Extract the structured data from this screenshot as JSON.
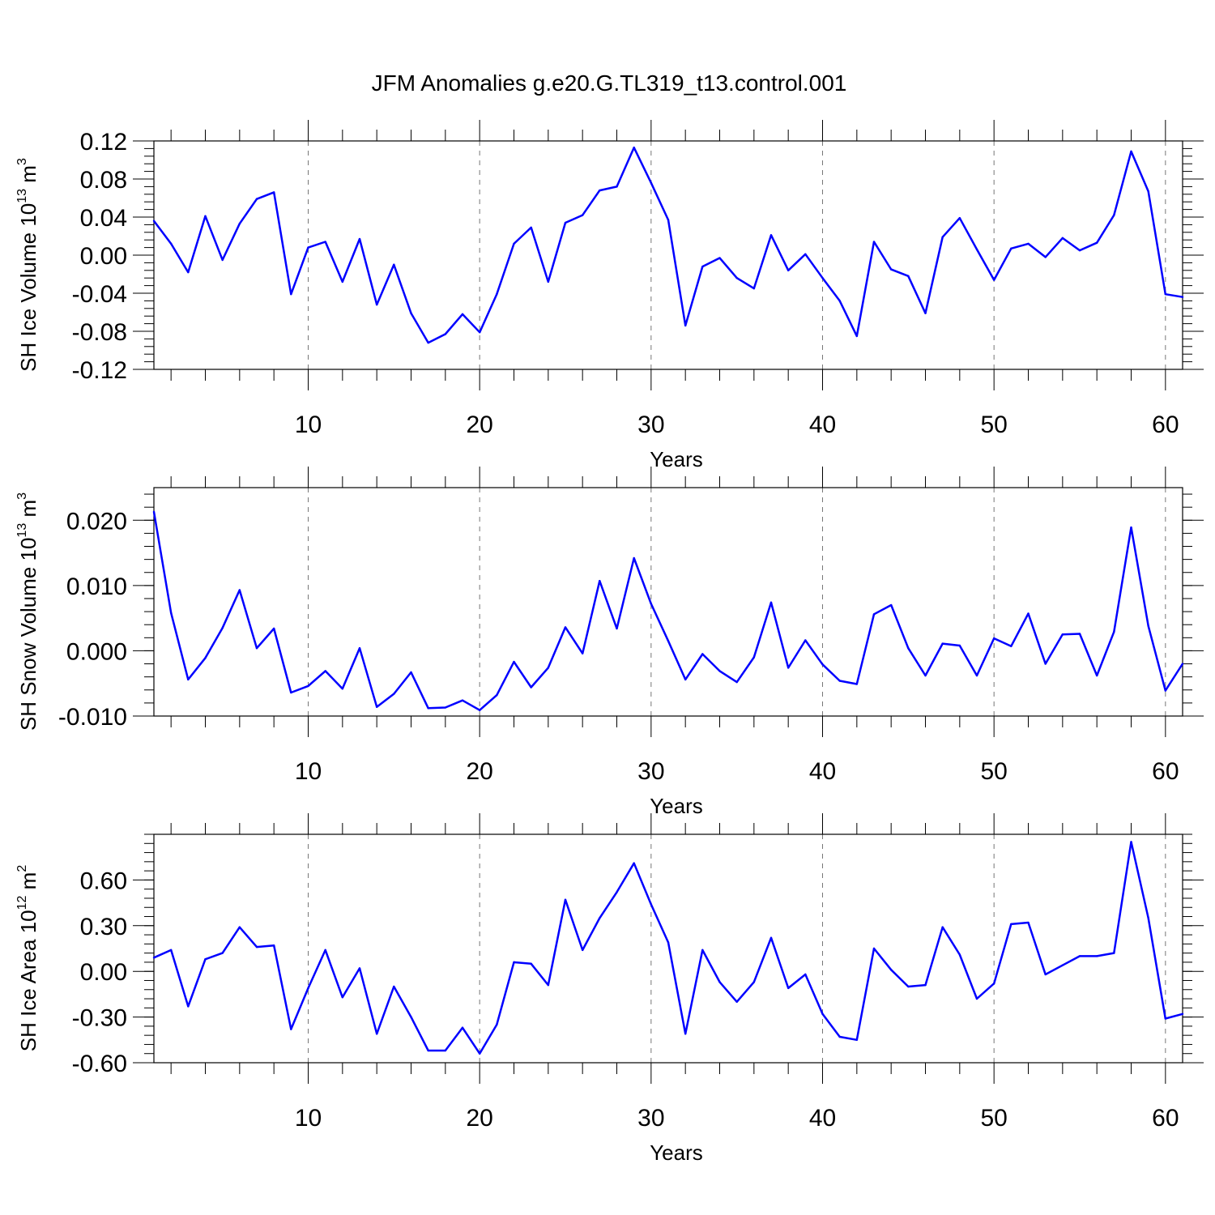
{
  "title": "JFM Anomalies g.e20.G.TL319_t13.control.001",
  "colors": {
    "line": "#0000ff",
    "grid": "#777777"
  },
  "chart_data": [
    {
      "type": "line",
      "ylabel": "SH Ice Volume 10",
      "ylabel_exp": "13",
      "ylabel_unit": " m",
      "ylabel_unit_exp": "3",
      "xlabel": "Years",
      "xlim": [
        1,
        61
      ],
      "ylim": [
        -0.12,
        0.12
      ],
      "xticks": [
        "10",
        "20",
        "30",
        "40",
        "50",
        "60"
      ],
      "yticks": [
        "0.12",
        "0.08",
        "0.04",
        "0.00",
        "-0.04",
        "-0.08",
        "-0.12"
      ],
      "grid": true,
      "x": [
        1,
        2,
        3,
        4,
        5,
        6,
        7,
        8,
        9,
        10,
        11,
        12,
        13,
        14,
        15,
        16,
        17,
        18,
        19,
        20,
        21,
        22,
        23,
        24,
        25,
        26,
        27,
        28,
        29,
        30,
        31,
        32,
        33,
        34,
        35,
        36,
        37,
        38,
        39,
        40,
        41,
        42,
        43,
        44,
        45,
        46,
        47,
        48,
        49,
        50,
        51,
        52,
        53,
        54,
        55,
        56,
        57,
        58,
        59,
        60,
        61
      ],
      "values": [
        0.036,
        0.012,
        -0.018,
        0.041,
        -0.005,
        0.033,
        0.059,
        0.066,
        -0.041,
        0.008,
        0.014,
        -0.028,
        0.017,
        -0.052,
        -0.01,
        -0.061,
        -0.092,
        -0.083,
        -0.062,
        -0.081,
        -0.041,
        0.012,
        0.029,
        -0.028,
        0.034,
        0.042,
        0.068,
        0.072,
        0.113,
        0.076,
        0.037,
        -0.074,
        -0.012,
        -0.003,
        -0.024,
        -0.035,
        0.021,
        -0.016,
        0.001,
        -0.024,
        -0.048,
        -0.085,
        0.014,
        -0.015,
        -0.022,
        -0.061,
        0.019,
        0.039,
        0.006,
        -0.026,
        0.007,
        0.012,
        -0.002,
        0.018,
        0.005,
        0.013,
        0.042,
        0.109,
        0.067,
        -0.041,
        -0.044
      ]
    },
    {
      "type": "line",
      "ylabel": "SH Snow Volume 10",
      "ylabel_exp": "13",
      "ylabel_unit": " m",
      "ylabel_unit_exp": "3",
      "xlabel": "Years",
      "xlim": [
        1,
        61
      ],
      "ylim": [
        -0.01,
        0.025
      ],
      "xticks": [
        "10",
        "20",
        "30",
        "40",
        "50",
        "60"
      ],
      "yticks": [
        "0.020",
        "0.010",
        "0.000",
        "-0.010"
      ],
      "grid": true,
      "x": [
        1,
        2,
        3,
        4,
        5,
        6,
        7,
        8,
        9,
        10,
        11,
        12,
        13,
        14,
        15,
        16,
        17,
        18,
        19,
        20,
        21,
        22,
        23,
        24,
        25,
        26,
        27,
        28,
        29,
        30,
        31,
        32,
        33,
        34,
        35,
        36,
        37,
        38,
        39,
        40,
        41,
        42,
        43,
        44,
        45,
        46,
        47,
        48,
        49,
        50,
        51,
        52,
        53,
        54,
        55,
        56,
        57,
        58,
        59,
        60,
        61
      ],
      "values": [
        0.0213,
        0.0058,
        -0.0044,
        -0.0011,
        0.0035,
        0.0093,
        0.0004,
        0.0034,
        -0.0064,
        -0.0054,
        -0.0031,
        -0.0058,
        0.0004,
        -0.0086,
        -0.0066,
        -0.0033,
        -0.0088,
        -0.0087,
        -0.0076,
        -0.0091,
        -0.0068,
        -0.0017,
        -0.0056,
        -0.0026,
        0.0036,
        -0.0004,
        0.0107,
        0.0034,
        0.0142,
        0.0072,
        0.0015,
        -0.0044,
        -0.0005,
        -0.0031,
        -0.0048,
        -0.001,
        0.0074,
        -0.0026,
        0.0016,
        -0.0021,
        -0.0046,
        -0.0051,
        0.0056,
        0.007,
        0.0004,
        -0.0038,
        0.0011,
        0.0008,
        -0.0038,
        0.0019,
        0.0007,
        0.0057,
        -0.002,
        0.0025,
        0.0026,
        -0.0038,
        0.0029,
        0.0189,
        0.0038,
        -0.0061,
        -0.002
      ]
    },
    {
      "type": "line",
      "ylabel": "SH Ice Area 10",
      "ylabel_exp": "12",
      "ylabel_unit": " m",
      "ylabel_unit_exp": "2",
      "xlabel": "Years",
      "xlim": [
        1,
        61
      ],
      "ylim": [
        -0.6,
        0.9
      ],
      "xticks": [
        "10",
        "20",
        "30",
        "40",
        "50",
        "60"
      ],
      "yticks": [
        "0.60",
        "0.30",
        "0.00",
        "-0.30",
        "-0.60"
      ],
      "grid": true,
      "x": [
        1,
        2,
        3,
        4,
        5,
        6,
        7,
        8,
        9,
        10,
        11,
        12,
        13,
        14,
        15,
        16,
        17,
        18,
        19,
        20,
        21,
        22,
        23,
        24,
        25,
        26,
        27,
        28,
        29,
        30,
        31,
        32,
        33,
        34,
        35,
        36,
        37,
        38,
        39,
        40,
        41,
        42,
        43,
        44,
        45,
        46,
        47,
        48,
        49,
        50,
        51,
        52,
        53,
        54,
        55,
        56,
        57,
        58,
        59,
        60,
        61
      ],
      "values": [
        0.09,
        0.14,
        -0.23,
        0.08,
        0.12,
        0.29,
        0.16,
        0.17,
        -0.38,
        -0.11,
        0.14,
        -0.17,
        0.02,
        -0.41,
        -0.1,
        -0.3,
        -0.52,
        -0.52,
        -0.37,
        -0.54,
        -0.35,
        0.06,
        0.05,
        -0.09,
        0.47,
        0.14,
        0.35,
        0.52,
        0.71,
        0.44,
        0.19,
        -0.41,
        0.14,
        -0.07,
        -0.2,
        -0.07,
        0.22,
        -0.11,
        -0.02,
        -0.28,
        -0.43,
        -0.45,
        0.15,
        0.01,
        -0.1,
        -0.09,
        0.29,
        0.11,
        -0.18,
        -0.08,
        0.31,
        0.32,
        -0.02,
        0.04,
        0.1,
        0.1,
        0.12,
        0.85,
        0.35,
        -0.31,
        -0.28
      ]
    }
  ]
}
